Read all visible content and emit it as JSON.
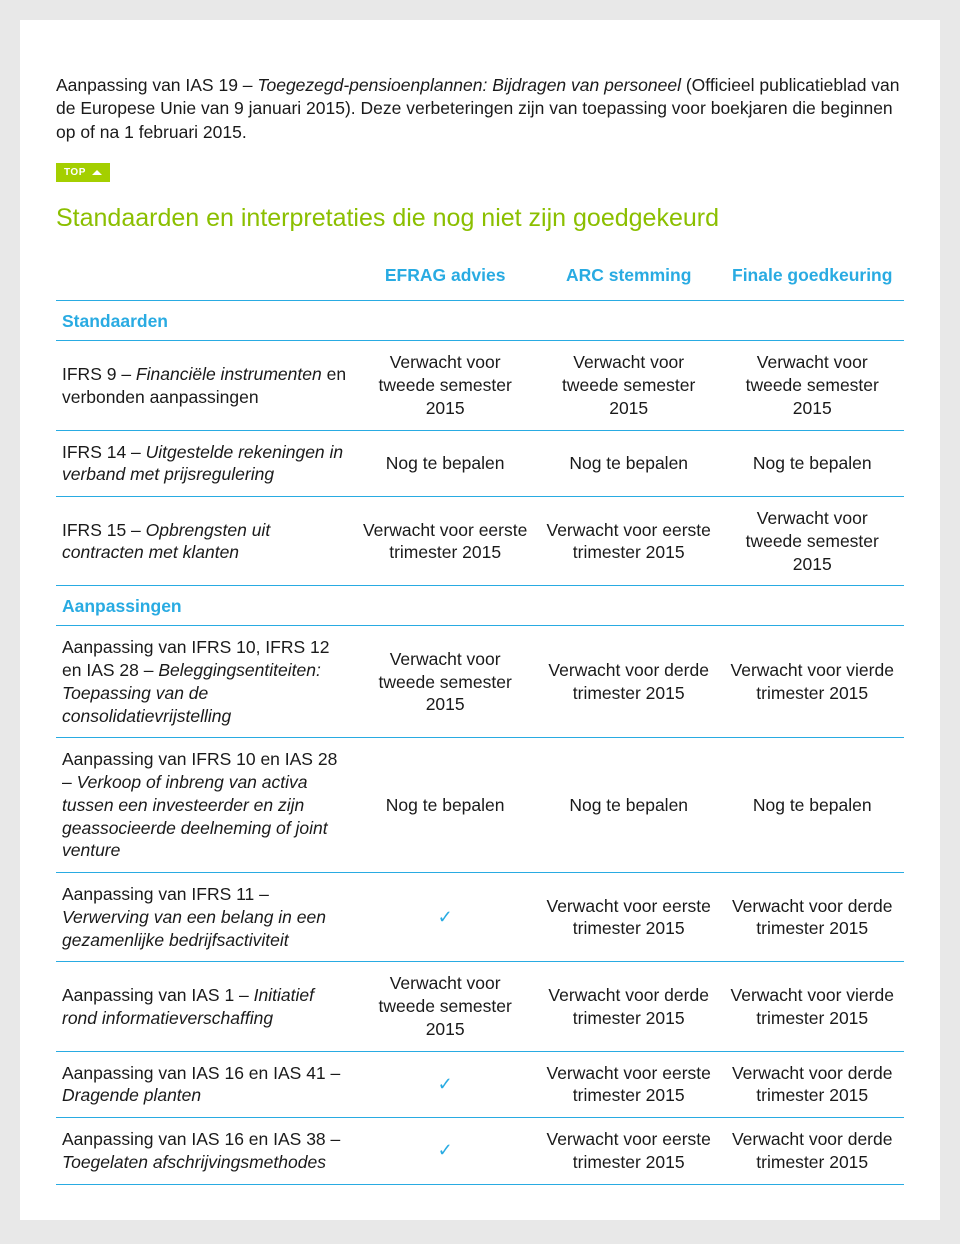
{
  "intro": {
    "prefix": "Aanpassing van IAS 19 – ",
    "italic": "Toegezegd-pensioenplannen: Bijdragen van personeel",
    "rest": " (Officieel publicatieblad van de Europese Unie van 9 januari 2015). Deze verbeteringen zijn van toepassing voor boekjaren die beginnen op of na 1 februari 2015."
  },
  "top_label": "TOP",
  "section_title": "Standaarden en interpretaties die nog niet zijn goedgekeurd",
  "columns": {
    "efrag": "EFRAG advies",
    "arc": "ARC stemming",
    "finale": "Finale goedkeuring"
  },
  "groups": [
    {
      "title": "Standaarden",
      "rows": [
        {
          "label_prefix": "IFRS 9 – ",
          "label_italic": "Financiële instrumenten",
          "label_suffix": " en verbonden aanpassingen",
          "efrag": "Verwacht voor tweede semester 2015",
          "arc": "Verwacht voor tweede semester 2015",
          "finale": "Verwacht voor tweede semester 2015"
        },
        {
          "label_prefix": "IFRS 14 – ",
          "label_italic": "Uitgestelde rekeningen in verband met prijsregulering",
          "label_suffix": "",
          "efrag": "Nog te bepalen",
          "arc": "Nog te bepalen",
          "finale": "Nog te bepalen"
        },
        {
          "label_prefix": "IFRS 15 – ",
          "label_italic": "Opbrengsten uit contracten met klanten",
          "label_suffix": "",
          "efrag": "Verwacht voor eerste trimester 2015",
          "arc": "Verwacht voor eerste trimester 2015",
          "finale": "Verwacht voor tweede semester 2015"
        }
      ]
    },
    {
      "title": "Aanpassingen",
      "rows": [
        {
          "label_prefix": "Aanpassing van IFRS 10, IFRS 12 en IAS 28 – ",
          "label_italic": "Beleggingsentiteiten: Toepassing van de consolidatievrijstelling",
          "label_suffix": "",
          "efrag": "Verwacht voor tweede semester 2015",
          "arc": "Verwacht voor derde trimester 2015",
          "finale": "Verwacht voor vierde trimester 2015"
        },
        {
          "label_prefix": "Aanpassing van IFRS 10 en IAS 28 – ",
          "label_italic": "Verkoop of inbreng van activa tussen een investeerder en zijn geassocieerde deelneming of joint venture",
          "label_suffix": "",
          "efrag": "Nog te bepalen",
          "arc": "Nog te bepalen",
          "finale": "Nog te bepalen"
        },
        {
          "label_prefix": "Aanpassing van IFRS 11 – ",
          "label_italic": "Verwerving van een belang in een gezamenlijke bedrijfsactiviteit",
          "label_suffix": "",
          "efrag": "✓",
          "arc": "Verwacht voor eerste trimester 2015",
          "finale": "Verwacht voor derde trimester 2015"
        },
        {
          "label_prefix": "Aanpassing van IAS 1 – ",
          "label_italic": "Initiatief rond informatieverschaffing",
          "label_suffix": "",
          "efrag": "Verwacht voor tweede semester 2015",
          "arc": "Verwacht voor derde trimester 2015",
          "finale": "Verwacht voor vierde trimester 2015"
        },
        {
          "label_prefix": "Aanpassing van IAS 16 en IAS 41 – ",
          "label_italic": "Dragende planten",
          "label_suffix": "",
          "efrag": "✓",
          "arc": "Verwacht voor eerste trimester 2015",
          "finale": "Verwacht voor derde trimester 2015"
        },
        {
          "label_prefix": "Aanpassing van IAS 16 en IAS 38 – ",
          "label_italic": "Toegelaten afschrijvingsmethodes",
          "label_suffix": "",
          "efrag": "✓",
          "arc": "Verwacht voor eerste trimester 2015",
          "finale": "Verwacht voor derde trimester 2015"
        }
      ]
    }
  ]
}
